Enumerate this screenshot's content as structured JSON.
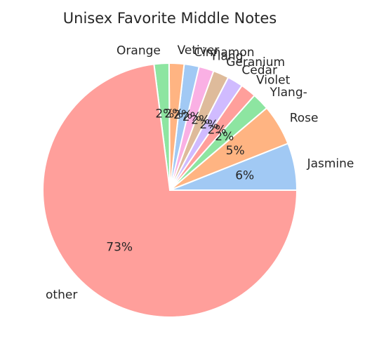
{
  "chart_data": {
    "type": "pie",
    "title": "Unisex Favorite Middle Notes",
    "start_angle_deg": 0,
    "direction": "counterclockwise",
    "slices": [
      {
        "label": "Jasmine",
        "value": 6.0,
        "pct_label": "6%",
        "color": "#a1c9f4"
      },
      {
        "label": "Rose",
        "value": 5.2,
        "pct_label": "5%",
        "color": "#ffb482"
      },
      {
        "label": "Ylang-",
        "value": 2.2,
        "pct_label": "2%",
        "color": "#8de5a1"
      },
      {
        "label": "Violet",
        "value": 2.0,
        "pct_label": "2%",
        "color": "#ff9f9b"
      },
      {
        "label": "Cedar",
        "value": 2.0,
        "pct_label": "2%",
        "color": "#d0bbff"
      },
      {
        "label": "Geranium",
        "value": 2.0,
        "pct_label": "2%",
        "color": "#debb9b"
      },
      {
        "label": "Ylang",
        "value": 1.9,
        "pct_label": "2%",
        "color": "#fab0e4"
      },
      {
        "label": "Cinnamon",
        "value": 1.9,
        "pct_label": "2%",
        "color": "#a1c9f4"
      },
      {
        "label": "Vetiver",
        "value": 1.9,
        "pct_label": "2%",
        "color": "#ffb482"
      },
      {
        "label": "Orange",
        "value": 1.9,
        "pct_label": "2%",
        "color": "#8de5a1"
      },
      {
        "label": "other",
        "value": 73.0,
        "pct_label": "73%",
        "color": "#ff9f9b"
      }
    ]
  }
}
